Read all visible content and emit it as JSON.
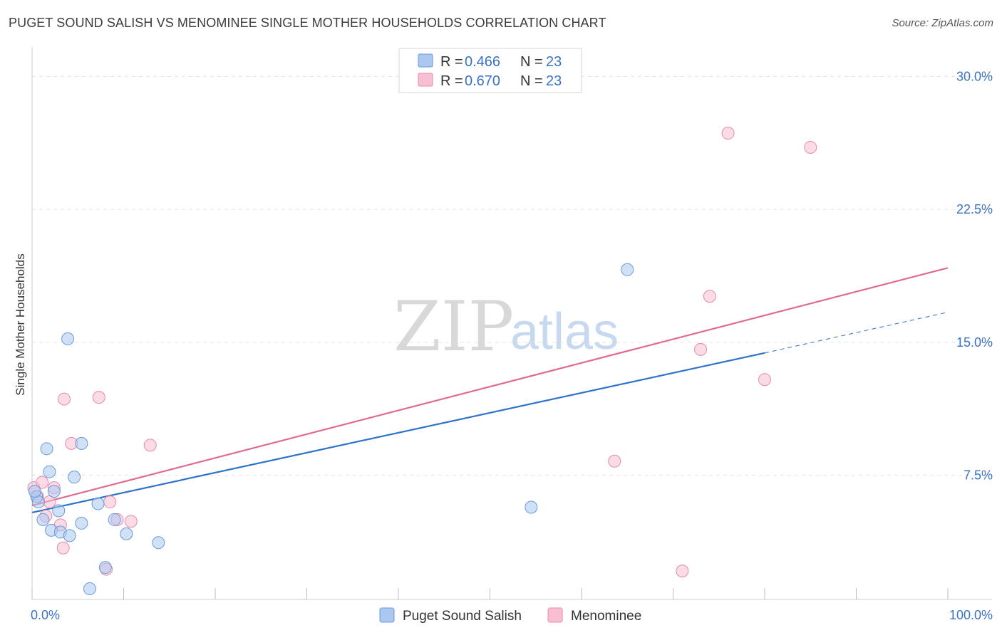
{
  "header": {
    "title": "PUGET SOUND SALISH VS MENOMINEE SINGLE MOTHER HOUSEHOLDS CORRELATION CHART",
    "source": "Source: ZipAtlas.com"
  },
  "watermark": {
    "part1": "ZIP",
    "part2": "atlas"
  },
  "legend": {
    "r_label": "R =",
    "n_label": "N =",
    "rows": [
      {
        "r": "0.466",
        "n": "23"
      },
      {
        "r": "0.670",
        "n": "23"
      }
    ]
  },
  "colors": {
    "blue_fill": "#aac8f0",
    "blue_stroke": "#6a9ad8",
    "blue_line": "#2f72c9",
    "pink_fill": "#f7bfd1",
    "pink_stroke": "#e88aaa",
    "pink_line": "#e06a94",
    "tick_text": "#3b73c4",
    "grid": "#e2e2e2"
  },
  "chart_data": {
    "type": "scatter",
    "title": "PUGET SOUND SALISH VS MENOMINEE SINGLE MOTHER HOUSEHOLDS CORRELATION CHART",
    "xlabel": "",
    "ylabel": "Single Mother Households",
    "xlim": [
      0,
      100
    ],
    "ylim": [
      0.5,
      31.5
    ],
    "x_tick_labels": [
      "0.0%",
      "100.0%"
    ],
    "y_ticks": [
      7.5,
      15.0,
      22.5,
      30.0
    ],
    "y_tick_labels": [
      "7.5%",
      "15.0%",
      "22.5%",
      "30.0%"
    ],
    "grid": true,
    "series": [
      {
        "name": "Puget Sound Salish",
        "r": 0.466,
        "n": 23,
        "points": [
          [
            0.5,
            6.3
          ],
          [
            0.7,
            6.0
          ],
          [
            1.2,
            5.0
          ],
          [
            1.6,
            9.0
          ],
          [
            1.9,
            7.7
          ],
          [
            2.1,
            4.4
          ],
          [
            2.4,
            6.6
          ],
          [
            2.9,
            5.5
          ],
          [
            3.1,
            4.3
          ],
          [
            3.9,
            15.2
          ],
          [
            4.1,
            4.1
          ],
          [
            4.6,
            7.4
          ],
          [
            5.4,
            9.3
          ],
          [
            5.4,
            4.8
          ],
          [
            6.3,
            1.1
          ],
          [
            7.2,
            5.9
          ],
          [
            8.0,
            2.3
          ],
          [
            9.0,
            5.0
          ],
          [
            10.3,
            4.2
          ],
          [
            13.8,
            3.7
          ],
          [
            54.5,
            5.7
          ],
          [
            65.0,
            19.1
          ],
          [
            0.3,
            6.6
          ]
        ],
        "trend": {
          "x": [
            0,
            80
          ],
          "y": [
            5.4,
            14.4
          ]
        },
        "trend_dashed": {
          "x": [
            80,
            100
          ],
          "y": [
            14.4,
            16.7
          ]
        }
      },
      {
        "name": "Menominee",
        "r": 0.67,
        "n": 23,
        "points": [
          [
            0.2,
            6.8
          ],
          [
            0.6,
            6.3
          ],
          [
            1.1,
            7.1
          ],
          [
            1.5,
            5.2
          ],
          [
            1.9,
            6.0
          ],
          [
            2.4,
            6.8
          ],
          [
            3.1,
            4.7
          ],
          [
            3.4,
            3.4
          ],
          [
            3.5,
            11.8
          ],
          [
            4.3,
            9.3
          ],
          [
            7.3,
            11.9
          ],
          [
            8.1,
            2.2
          ],
          [
            8.5,
            6.0
          ],
          [
            9.3,
            5.0
          ],
          [
            10.8,
            4.9
          ],
          [
            12.9,
            9.2
          ],
          [
            63.6,
            8.3
          ],
          [
            71.0,
            2.1
          ],
          [
            73.0,
            14.6
          ],
          [
            74.0,
            17.6
          ],
          [
            76.0,
            26.8
          ],
          [
            80.0,
            12.9
          ],
          [
            85.0,
            26.0
          ]
        ],
        "trend": {
          "x": [
            0,
            100
          ],
          "y": [
            5.8,
            19.2
          ]
        }
      }
    ]
  },
  "bottom_legend": {
    "items": [
      "Puget Sound Salish",
      "Menominee"
    ]
  }
}
